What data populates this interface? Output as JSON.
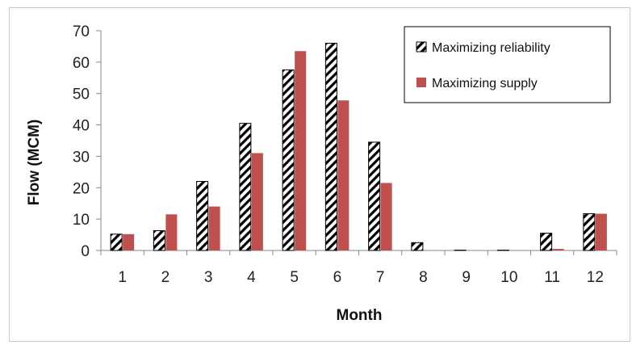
{
  "chart_data": {
    "type": "bar",
    "categories": [
      "1",
      "2",
      "3",
      "4",
      "5",
      "6",
      "7",
      "8",
      "9",
      "10",
      "11",
      "12"
    ],
    "series": [
      {
        "name": "Maximizing reliability",
        "values": [
          5.2,
          6.3,
          22.0,
          40.5,
          57.5,
          66.0,
          34.5,
          2.5,
          0.1,
          0.1,
          5.5,
          11.7
        ],
        "color": "#000000",
        "pattern": "diagonal-hatch"
      },
      {
        "name": "Maximizing supply",
        "values": [
          5.2,
          11.5,
          14.0,
          31.0,
          63.5,
          47.8,
          21.5,
          0.0,
          0.0,
          0.0,
          0.5,
          11.7
        ],
        "color": "#c0504d",
        "pattern": "solid"
      }
    ],
    "xlabel": "Month",
    "ylabel": "Flow (MCM)",
    "ylim": [
      0,
      70
    ],
    "yticks": [
      "0",
      "10",
      "20",
      "30",
      "40",
      "50",
      "60",
      "70"
    ],
    "grid": false,
    "legend_position": "top-right"
  }
}
